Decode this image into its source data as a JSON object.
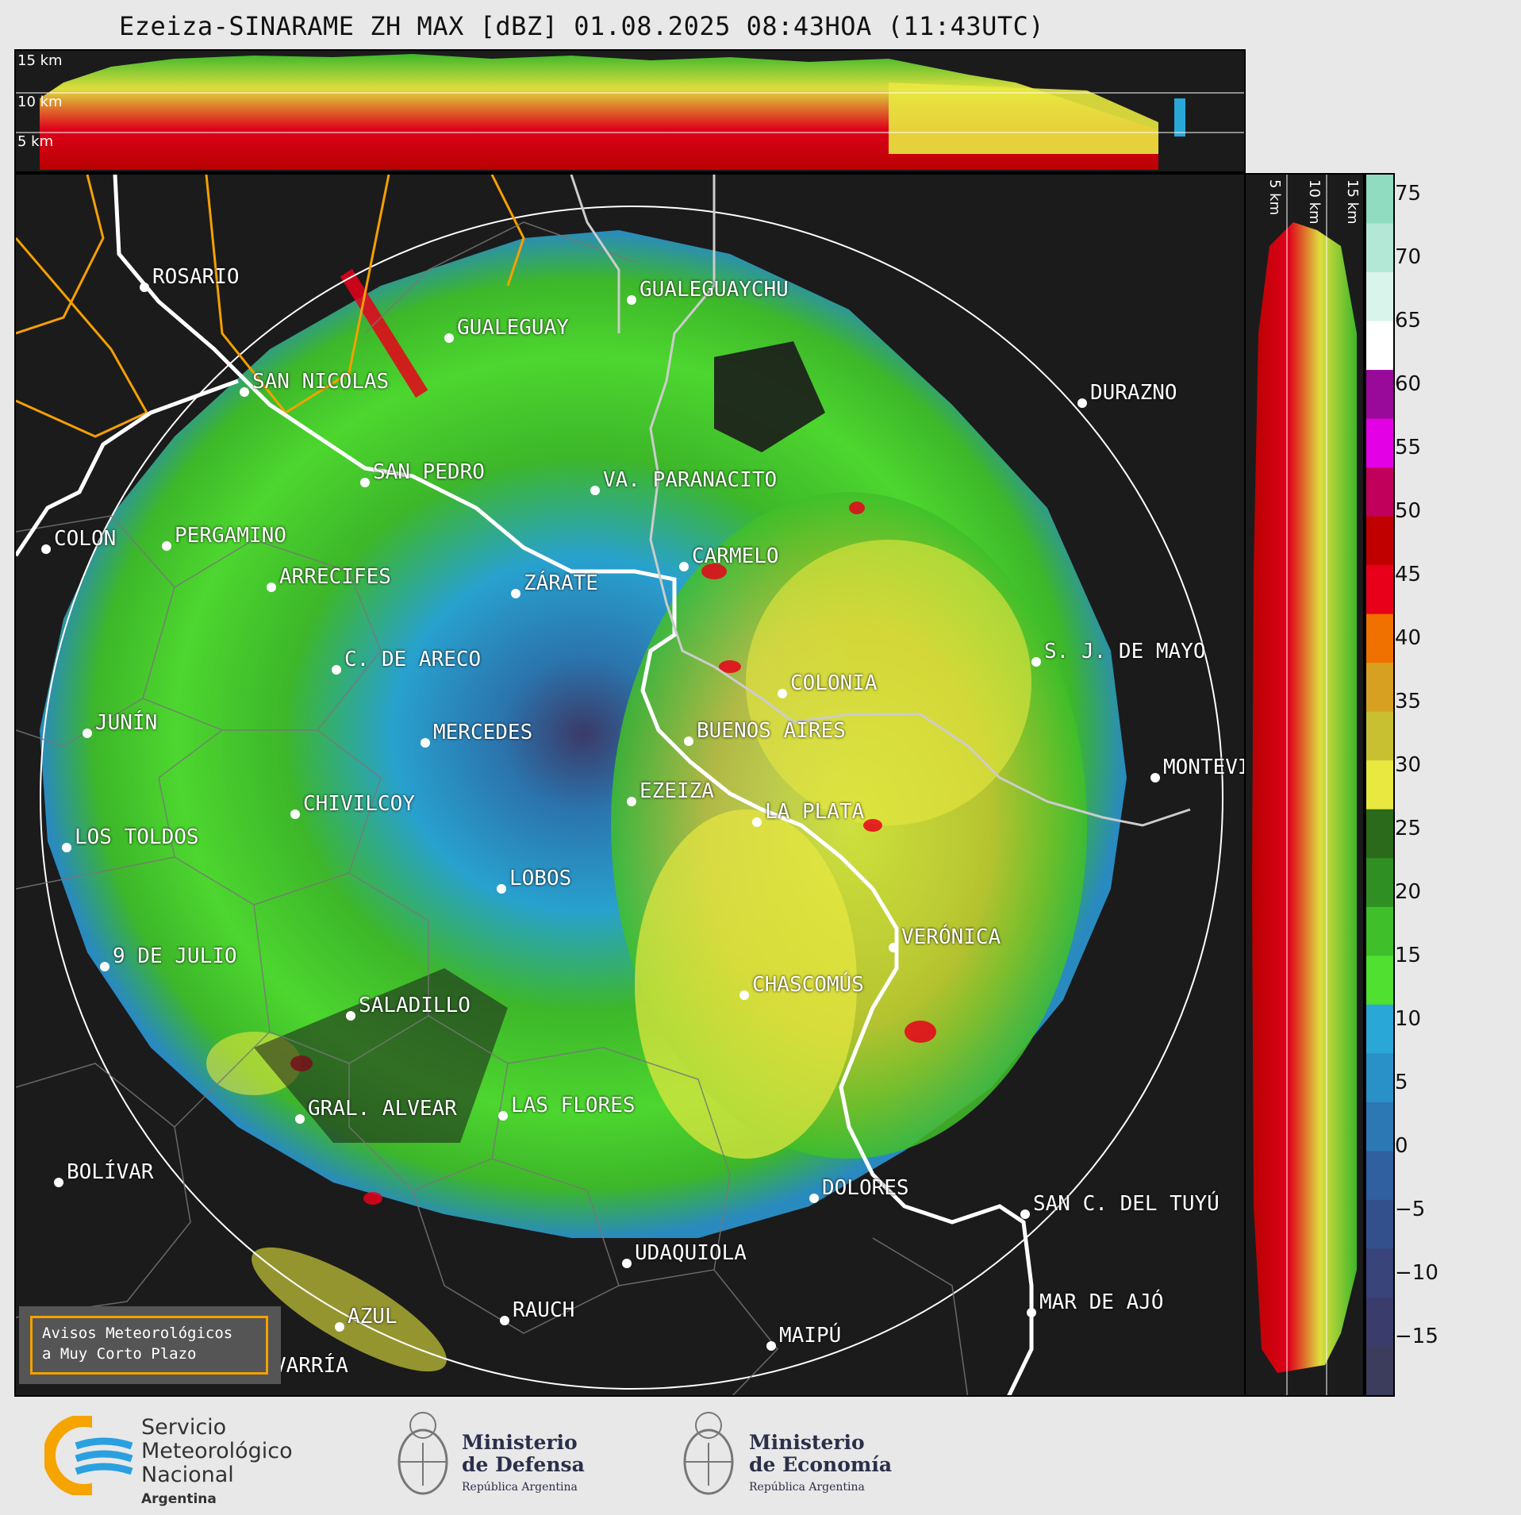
{
  "title": "Ezeiza-SINARAME ZH MAX [dBZ] 01.08.2025 08:43HOA (11:43UTC)",
  "height_ticks": [
    "15 km",
    "10 km",
    "5 km"
  ],
  "colorbar": {
    "ticks": [
      "75",
      "70",
      "65",
      "60",
      "55",
      "50",
      "45",
      "40",
      "35",
      "30",
      "25",
      "20",
      "15",
      "10",
      "5",
      "0",
      "−5",
      "−10",
      "−15"
    ],
    "colors": [
      "#8fdcc0",
      "#b4e8d6",
      "#d9f4ea",
      "#ffffff",
      "#9a0a9a",
      "#e400e4",
      "#c0005a",
      "#c00000",
      "#e8001a",
      "#f07000",
      "#d8a020",
      "#c8c030",
      "#e8e840",
      "#2a6a1a",
      "#2f8f22",
      "#3fbf2a",
      "#4fe030",
      "#29a8d8",
      "#2a90c8",
      "#2c78b4",
      "#3060a0",
      "#34508c",
      "#38447a",
      "#3a3c6c",
      "#3c3c5c"
    ]
  },
  "cities": [
    {
      "name": "ROSARIO"
    },
    {
      "name": "GUALEGUAYCHU"
    },
    {
      "name": "GUALEGUAY"
    },
    {
      "name": "SAN NICOLAS"
    },
    {
      "name": "DURAZNO"
    },
    {
      "name": "SAN PEDRO"
    },
    {
      "name": "VA. PARANACITO"
    },
    {
      "name": "COLON"
    },
    {
      "name": "PERGAMINO"
    },
    {
      "name": "CARMELO"
    },
    {
      "name": "ARRECIFES"
    },
    {
      "name": "ZÁRATE"
    },
    {
      "name": "S. J. DE MAYO"
    },
    {
      "name": "C. DE ARECO"
    },
    {
      "name": "COLONIA"
    },
    {
      "name": "JUNÍN"
    },
    {
      "name": "BUENOS AIRES"
    },
    {
      "name": "MERCEDES"
    },
    {
      "name": "MONTEVIDEO"
    },
    {
      "name": "EZEIZA"
    },
    {
      "name": "CHIVILCOY"
    },
    {
      "name": "LA PLATA"
    },
    {
      "name": "LOS TOLDOS"
    },
    {
      "name": "LOBOS"
    },
    {
      "name": "VERÓNICA"
    },
    {
      "name": "9 DE JULIO"
    },
    {
      "name": "CHASCOMÚS"
    },
    {
      "name": "SALADILLO"
    },
    {
      "name": "GRAL. ALVEAR"
    },
    {
      "name": "LAS FLORES"
    },
    {
      "name": "BOLÍVAR"
    },
    {
      "name": "DOLORES"
    },
    {
      "name": "SAN C. DEL TUYÚ"
    },
    {
      "name": "UDAQUIOLA"
    },
    {
      "name": "AZUL"
    },
    {
      "name": "RAUCH"
    },
    {
      "name": "MAR DE AJÓ"
    },
    {
      "name": "OLAVARRÍA"
    },
    {
      "name": "MAIPÚ"
    }
  ],
  "warning_box": {
    "line1": "Avisos Meteorológicos",
    "line2": "a Muy Corto Plazo"
  },
  "logos": {
    "smn": {
      "line1": "Servicio",
      "line2": "Meteorológico",
      "line3": "Nacional",
      "line4": "Argentina"
    },
    "defensa": {
      "line1": "Ministerio",
      "line2": "de Defensa",
      "line3": "República Argentina"
    },
    "economia": {
      "line1": "Ministerio",
      "line2": "de Economía",
      "line3": "República Argentina"
    }
  }
}
